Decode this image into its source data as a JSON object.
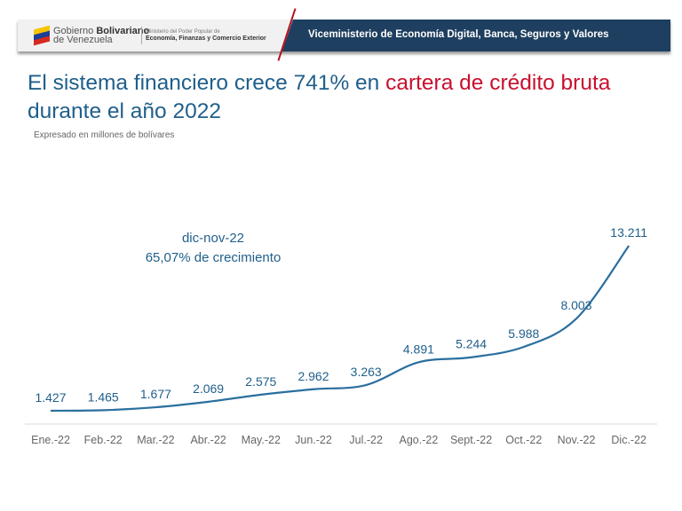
{
  "header": {
    "gov_line1": "Gobierno ",
    "gov_bold": "Bolivariano",
    "gov_line2": "de Venezuela",
    "ministry_line1": "Ministerio del Poder Popular de",
    "ministry_line2": "Economía, Finanzas y Comercio Exterior",
    "title": "Viceministerio de Economía Digital, Banca, Seguros y Valores"
  },
  "title": {
    "part1": "El sistema financiero crece 741% en ",
    "highlight": "cartera de crédito bruta",
    "part2": " durante el año 2022"
  },
  "subtitle": "Expresado en millones de bolívares",
  "annotation": {
    "line1": "dic-nov-22",
    "line2": "65,07% de crecimiento"
  },
  "colors": {
    "line": "#2a6f9e",
    "title": "#1f5f8b",
    "highlight": "#c8102e",
    "header": "#1e3f5f"
  },
  "chart_data": {
    "type": "line",
    "title": "",
    "xlabel": "",
    "ylabel": "Millones de bolívares",
    "categories": [
      "Ene.-22",
      "Feb.-22",
      "Mar.-22",
      "Abr.-22",
      "May.-22",
      "Jun.-22",
      "Jul.-22",
      "Ago.-22",
      "Sept.-22",
      "Oct.-22",
      "Nov.-22",
      "Dic.-22"
    ],
    "values": [
      1427,
      1465,
      1677,
      2069,
      2575,
      2962,
      3263,
      4891,
      5244,
      5988,
      8003,
      13211
    ],
    "labels": [
      "1.427",
      "1.465",
      "1.677",
      "2.069",
      "2.575",
      "2.962",
      "3.263",
      "4.891",
      "5.244",
      "5.988",
      "8.003",
      "13.211"
    ],
    "grid": false
  }
}
